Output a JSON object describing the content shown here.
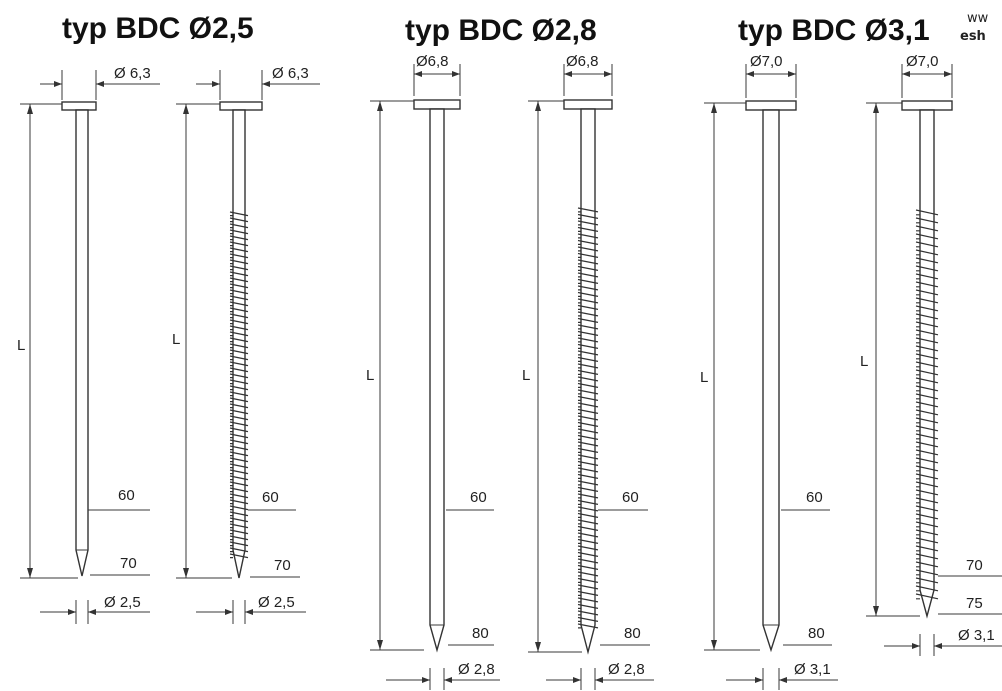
{
  "titles": [
    "typ BDC Ø2,5",
    "typ BDC Ø2,8",
    "typ BDC Ø3,1"
  ],
  "website": {
    "line1": "ww",
    "line2": "esh"
  },
  "length_symbol": "L",
  "head_diameters": [
    "Ø 6,3",
    "Ø 6,3",
    "Ø6,8",
    "Ø6,8",
    "Ø7,0",
    "Ø7,0"
  ],
  "shank_diameters": [
    "Ø 2,5",
    "Ø 2,5",
    "Ø 2,8",
    "Ø 2,8",
    "Ø 3,1",
    "Ø 3,1"
  ],
  "lengths": {
    "n1": [
      "60",
      "70"
    ],
    "n2": [
      "60",
      "70"
    ],
    "n3": [
      "60",
      "80"
    ],
    "n4": [
      "60",
      "80"
    ],
    "n5": [
      "60",
      "80"
    ],
    "n6": [
      "70",
      "75"
    ]
  }
}
